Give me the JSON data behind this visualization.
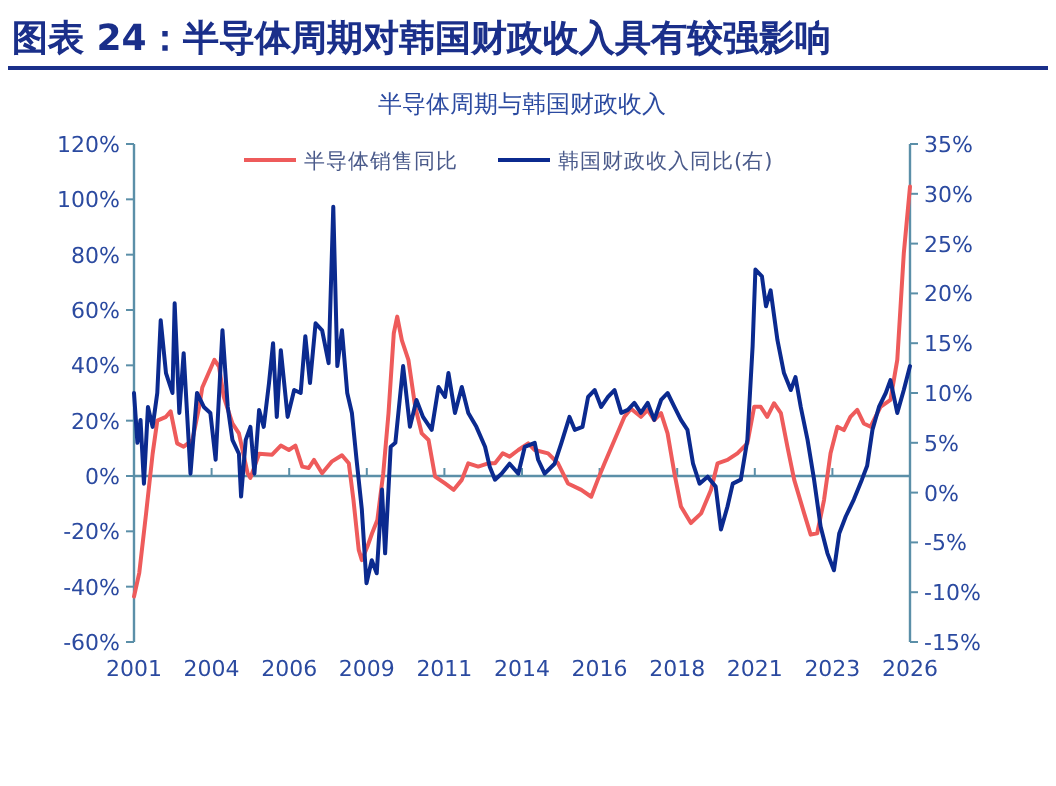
{
  "chart_data": {
    "type": "line",
    "title": "图表 24：半导体周期对韩国财政收入具有较强影响",
    "subtitle": "半导体周期与韩国财政收入",
    "legend": "top",
    "ref_lines": [
      {
        "axis": "y",
        "value": 0,
        "color": "#5b8fa8"
      }
    ],
    "xlim": [
      2001,
      2026
    ],
    "xticks": [
      {
        "value": 2001,
        "label": "2001"
      },
      {
        "value": 2003.5,
        "label": "2004"
      },
      {
        "value": 2006,
        "label": "2006"
      },
      {
        "value": 2008.5,
        "label": "2009"
      },
      {
        "value": 2011,
        "label": "2011"
      },
      {
        "value": 2013.5,
        "label": "2014"
      },
      {
        "value": 2016,
        "label": "2016"
      },
      {
        "value": 2018.5,
        "label": "2018"
      },
      {
        "value": 2021,
        "label": "2021"
      },
      {
        "value": 2023.5,
        "label": "2023"
      },
      {
        "value": 2026,
        "label": "2026"
      }
    ],
    "ylim": [
      -60,
      120
    ],
    "yticks": [
      {
        "value": -60,
        "label": "-60%"
      },
      {
        "value": -40,
        "label": "-40%"
      },
      {
        "value": -20,
        "label": "-20%"
      },
      {
        "value": 0,
        "label": "0%"
      },
      {
        "value": 20,
        "label": "20%"
      },
      {
        "value": 40,
        "label": "40%"
      },
      {
        "value": 60,
        "label": "60%"
      },
      {
        "value": 80,
        "label": "80%"
      },
      {
        "value": 100,
        "label": "100%"
      },
      {
        "value": 120,
        "label": "120%"
      }
    ],
    "y2lim": [
      -15,
      35
    ],
    "y2ticks": [
      {
        "value": -15,
        "label": "-15%"
      },
      {
        "value": -10,
        "label": "-10%"
      },
      {
        "value": -5,
        "label": "-5%"
      },
      {
        "value": 0,
        "label": "0%"
      },
      {
        "value": 5,
        "label": "5%"
      },
      {
        "value": 10,
        "label": "10%"
      },
      {
        "value": 15,
        "label": "15%"
      },
      {
        "value": 20,
        "label": "20%"
      },
      {
        "value": 25,
        "label": "25%"
      },
      {
        "value": 30,
        "label": "30%"
      },
      {
        "value": 35,
        "label": "35%"
      }
    ],
    "series": [
      {
        "name": "半导体销售同比",
        "color": "#ee5b5b",
        "x": [
          2001.0,
          2001.17,
          2001.39,
          2001.6,
          2001.75,
          2002.03,
          2002.18,
          2002.39,
          2002.6,
          2002.88,
          2003.1,
          2003.2,
          2003.59,
          2003.74,
          2003.89,
          2004.17,
          2004.38,
          2004.66,
          2004.75,
          2005.03,
          2005.45,
          2005.73,
          2005.99,
          2006.2,
          2006.42,
          2006.63,
          2006.8,
          2007.06,
          2007.38,
          2007.7,
          2007.92,
          2008.07,
          2008.24,
          2008.34,
          2008.52,
          2008.67,
          2008.84,
          2009.03,
          2009.2,
          2009.37,
          2009.48,
          2009.63,
          2009.84,
          2010.06,
          2010.27,
          2010.49,
          2010.7,
          2011.02,
          2011.3,
          2011.56,
          2011.77,
          2012.09,
          2012.41,
          2012.63,
          2012.88,
          2013.1,
          2013.38,
          2013.7,
          2013.91,
          2014.34,
          2014.66,
          2014.98,
          2015.41,
          2015.73,
          2015.94,
          2016.16,
          2016.48,
          2016.8,
          2017.01,
          2017.33,
          2017.55,
          2017.76,
          2017.98,
          2018.19,
          2018.41,
          2018.62,
          2018.94,
          2019.27,
          2019.59,
          2019.8,
          2020.12,
          2020.44,
          2020.76,
          2020.98,
          2021.19,
          2021.4,
          2021.62,
          2021.84,
          2022.05,
          2022.27,
          2022.59,
          2022.8,
          2023.01,
          2023.23,
          2023.44,
          2023.66,
          2023.87,
          2024.08,
          2024.3,
          2024.51,
          2024.73,
          2025.05,
          2025.37,
          2025.59,
          2025.8,
          2026.0
        ],
        "values": [
          -43.6,
          -35,
          -13.5,
          8,
          20,
          21.4,
          23.4,
          11.8,
          10.6,
          13,
          25,
          32,
          42,
          39.5,
          28.7,
          19,
          15.4,
          1,
          -0.7,
          8,
          7.7,
          11,
          9.4,
          11,
          3.4,
          2.9,
          5.8,
          1,
          5.3,
          7.5,
          4.6,
          -8.7,
          -26.7,
          -30.4,
          -25.5,
          -20.7,
          -15.9,
          1,
          22.7,
          51.6,
          57.6,
          49,
          42,
          25,
          15.4,
          13,
          -0.2,
          -2.7,
          -5,
          -1.4,
          4.6,
          3.4,
          4.6,
          4.6,
          8.2,
          7,
          9.4,
          11.8,
          9.4,
          8.2,
          4.6,
          -2.7,
          -5,
          -7.5,
          -1.4,
          4.6,
          13,
          21.4,
          24.3,
          21.4,
          23.9,
          20.2,
          22.7,
          15.4,
          1,
          -11,
          -17,
          -13.5,
          -5,
          4.6,
          5.8,
          8.2,
          11.8,
          25,
          25,
          21.4,
          26.3,
          22.7,
          10.6,
          -1.4,
          -13.5,
          -21.2,
          -20.7,
          -8.7,
          8.2,
          17.8,
          16.6,
          21.4,
          23.9,
          19,
          17.8,
          25,
          27.5,
          42,
          80.5,
          104.6
        ]
      },
      {
        "name": "韩国财政收入同比(右)",
        "color": "#0b2a8f",
        "axis": "y2",
        "x": [
          2001.0,
          2001.11,
          2001.21,
          2001.32,
          2001.45,
          2001.6,
          2001.75,
          2001.86,
          2002.03,
          2002.24,
          2002.31,
          2002.46,
          2002.6,
          2002.82,
          2003.03,
          2003.25,
          2003.46,
          2003.63,
          2003.85,
          2004.02,
          2004.17,
          2004.38,
          2004.45,
          2004.6,
          2004.75,
          2004.88,
          2005.03,
          2005.18,
          2005.35,
          2005.48,
          2005.6,
          2005.73,
          2005.95,
          2006.16,
          2006.37,
          2006.52,
          2006.67,
          2006.85,
          2007.06,
          2007.27,
          2007.42,
          2007.55,
          2007.7,
          2007.87,
          2008.02,
          2008.17,
          2008.34,
          2008.49,
          2008.66,
          2008.82,
          2008.99,
          2009.09,
          2009.27,
          2009.42,
          2009.67,
          2009.89,
          2010.1,
          2010.31,
          2010.59,
          2010.81,
          2011.02,
          2011.13,
          2011.34,
          2011.56,
          2011.77,
          2012.03,
          2012.31,
          2012.46,
          2012.63,
          2012.84,
          2013.1,
          2013.38,
          2013.59,
          2013.91,
          2014.02,
          2014.23,
          2014.55,
          2014.77,
          2015.03,
          2015.2,
          2015.45,
          2015.63,
          2015.84,
          2016.05,
          2016.27,
          2016.48,
          2016.7,
          2016.91,
          2017.12,
          2017.33,
          2017.55,
          2017.76,
          2017.98,
          2018.19,
          2018.41,
          2018.62,
          2018.83,
          2019.01,
          2019.22,
          2019.48,
          2019.74,
          2019.91,
          2020.12,
          2020.29,
          2020.55,
          2020.76,
          2020.93,
          2021.02,
          2021.23,
          2021.36,
          2021.51,
          2021.73,
          2021.94,
          2022.16,
          2022.31,
          2022.48,
          2022.7,
          2022.91,
          2023.12,
          2023.34,
          2023.55,
          2023.72,
          2023.93,
          2024.19,
          2024.45,
          2024.62,
          2024.79,
          2025.0,
          2025.22,
          2025.37,
          2025.59,
          2025.8,
          2026.0
        ],
        "values": [
          10,
          5,
          7.3,
          0.9,
          8.6,
          6.6,
          10,
          17.3,
          12,
          10,
          19,
          8,
          14,
          1.9,
          10,
          8.6,
          8,
          3.3,
          16.3,
          8.6,
          5.3,
          3.9,
          -0.4,
          5.3,
          6.6,
          1.9,
          8.3,
          6.6,
          11,
          15,
          7.6,
          14.3,
          7.6,
          10.3,
          10,
          15.7,
          11,
          17,
          16.3,
          13,
          28.7,
          12.7,
          16.3,
          10,
          8,
          3.3,
          -1.7,
          -9.1,
          -6.8,
          -8.1,
          0.3,
          -6.1,
          4.6,
          5,
          12.7,
          6.6,
          9.3,
          7.6,
          6.3,
          10.6,
          9.6,
          12,
          8,
          10.6,
          8,
          6.6,
          4.6,
          2.6,
          1.3,
          1.9,
          2.9,
          1.9,
          4.6,
          5,
          3.3,
          1.9,
          2.9,
          5,
          7.6,
          6.3,
          6.6,
          9.6,
          10.3,
          8.6,
          9.6,
          10.3,
          8,
          8.3,
          9,
          8,
          9,
          7.3,
          9.3,
          10,
          8.6,
          7.3,
          6.3,
          2.9,
          0.9,
          1.6,
          0.6,
          -3.7,
          -1.4,
          0.9,
          1.3,
          5.3,
          14.7,
          22.4,
          21.7,
          18.7,
          20.3,
          15.3,
          12,
          10.3,
          11.6,
          8.6,
          5.3,
          1.3,
          -3.4,
          -6.1,
          -7.8,
          -4.1,
          -2.4,
          -0.7,
          1.3,
          2.7,
          6.3,
          8.6,
          10,
          11.3,
          8,
          10.3,
          12.7
        ]
      }
    ]
  }
}
